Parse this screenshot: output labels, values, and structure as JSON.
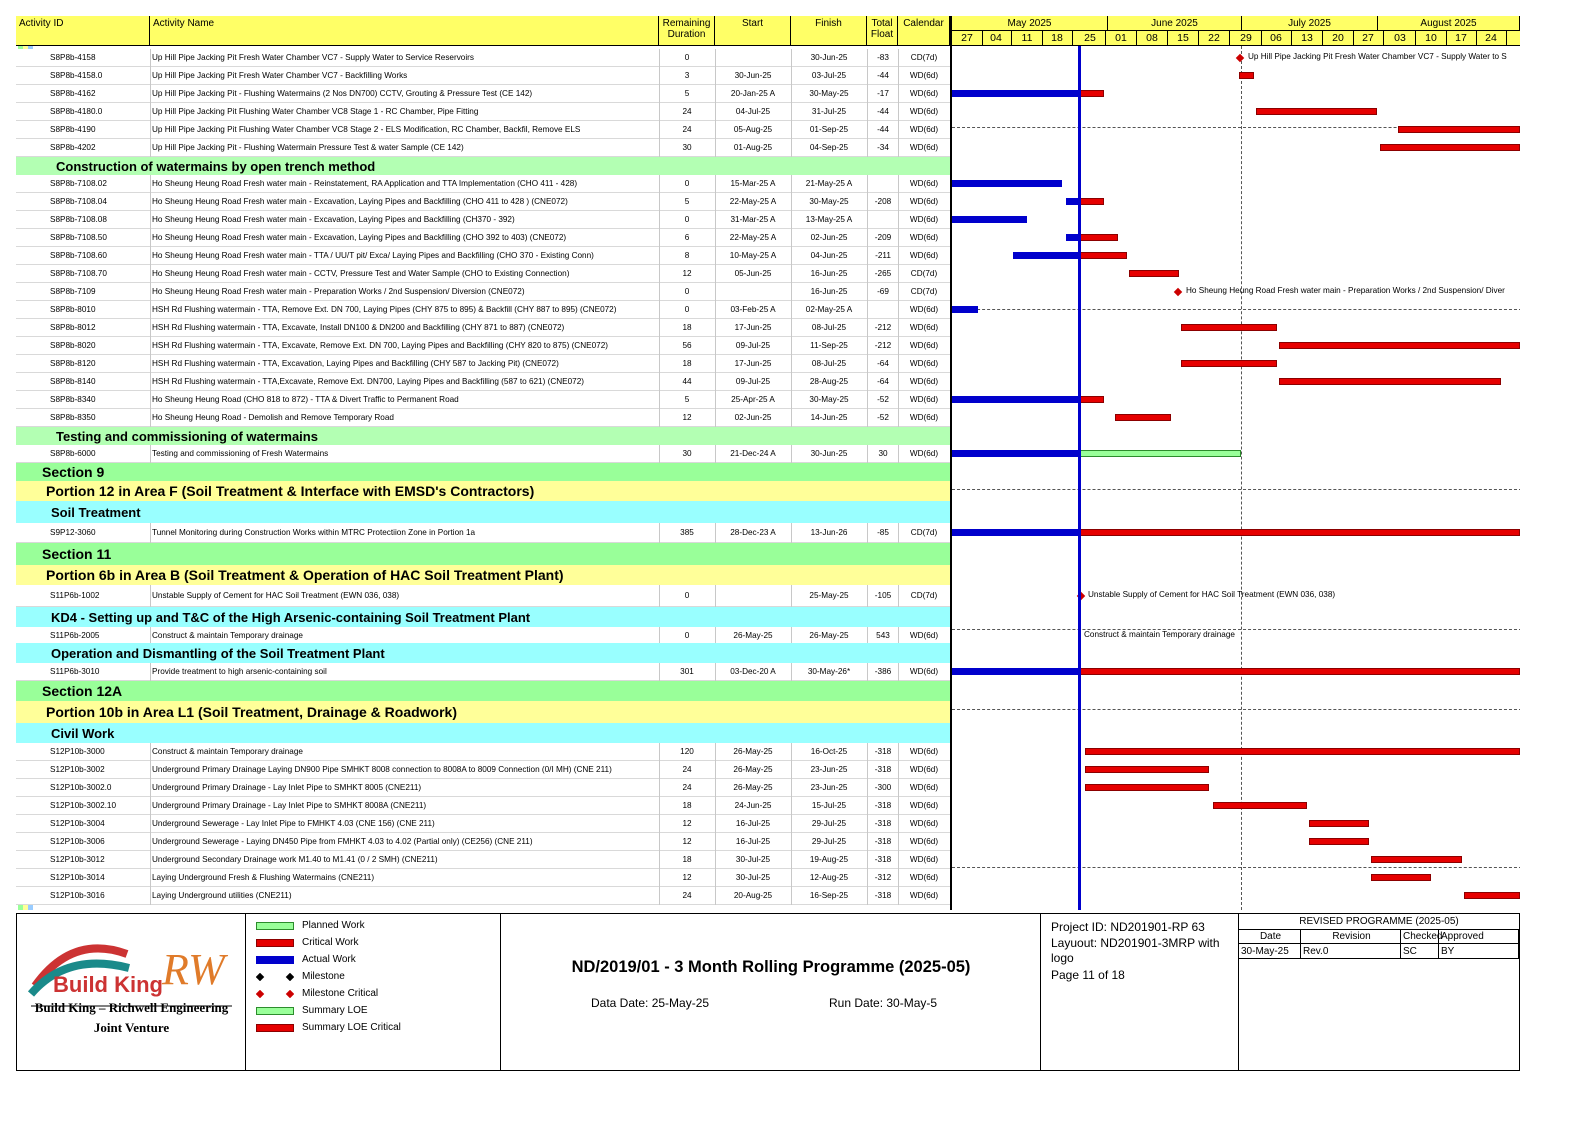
{
  "columns": {
    "id": "Activity ID",
    "name": "Activity Name",
    "rem": "Remaining Duration",
    "start": "Start",
    "finish": "Finish",
    "float": "Total Float",
    "cal": "Calendar"
  },
  "timeline": {
    "months": [
      {
        "label": "May 2025"
      },
      {
        "label": "June 2025"
      },
      {
        "label": "July 2025"
      },
      {
        "label": "August 2025"
      }
    ],
    "weeks": [
      "27",
      "04",
      "11",
      "18",
      "25",
      "01",
      "08",
      "15",
      "22",
      "29",
      "06",
      "13",
      "20",
      "27",
      "03",
      "10",
      "17",
      "24"
    ]
  },
  "rows": [
    {
      "type": "act",
      "id": "S8P8b-4158",
      "name": "Up Hill Pipe Jacking Pit Fresh Water Chamber VC7 - Supply Water to Service Reservoirs",
      "rem": "0",
      "start": "",
      "finish": "30-Jun-25",
      "float": "-83",
      "cal": "CD(7d)"
    },
    {
      "type": "act",
      "id": "S8P8b-4158.0",
      "name": "Up Hill Pipe Jacking Pit Fresh Water Chamber VC7 - Backfilling Works",
      "rem": "3",
      "start": "30-Jun-25",
      "finish": "03-Jul-25",
      "float": "-44",
      "cal": "WD(6d)"
    },
    {
      "type": "act",
      "id": "S8P8b-4162",
      "name": "Up Hill Pipe Jacking Pit - Flushing Watermains (2 Nos DN700) CCTV, Grouting & Pressure Test          (CE 142)",
      "rem": "5",
      "start": "20-Jan-25 A",
      "finish": "30-May-25",
      "float": "-17",
      "cal": "WD(6d)"
    },
    {
      "type": "act",
      "id": "S8P8b-4180.0",
      "name": "Up Hill Pipe Jacking Pit Flushing Water Chamber VC8 Stage 1 - RC Chamber, Pipe Fitting",
      "rem": "24",
      "start": "04-Jul-25",
      "finish": "31-Jul-25",
      "float": "-44",
      "cal": "WD(6d)"
    },
    {
      "type": "act",
      "id": "S8P8b-4190",
      "name": "Up Hill Pipe Jacking Pit Flushing Water Chamber VC8 Stage 2 - ELS Modification, RC Chamber, Backfil, Remove ELS",
      "rem": "24",
      "start": "05-Aug-25",
      "finish": "01-Sep-25",
      "float": "-44",
      "cal": "WD(6d)"
    },
    {
      "type": "act",
      "id": "S8P8b-4202",
      "name": "Up Hill Pipe Jacking Pit - Flushing Watermain Pressure Test & water Sample                        (CE 142)",
      "rem": "30",
      "start": "01-Aug-25",
      "finish": "04-Sep-25",
      "float": "-34",
      "cal": "WD(6d)"
    },
    {
      "type": "hdr",
      "cls": "lvl-lgreen",
      "indent": 40,
      "size": 13,
      "label": "Construction of watermains by open trench method"
    },
    {
      "type": "act",
      "id": "S8P8b-7108.02",
      "name": "Ho Sheung Heung Road Fresh water  main - Reinstatement, RA Application and TTA Implementation  (CHO 411 - 428)",
      "rem": "0",
      "start": "15-Mar-25 A",
      "finish": "21-May-25 A",
      "float": "",
      "cal": "WD(6d)"
    },
    {
      "type": "act",
      "id": "S8P8b-7108.04",
      "name": "Ho Sheung Heung Road Fresh water  main - Excavation, Laying Pipes and Backfilling (CHO 411 to 428 )          (CNE072)",
      "rem": "5",
      "start": "22-May-25 A",
      "finish": "30-May-25",
      "float": "-208",
      "cal": "WD(6d)"
    },
    {
      "type": "act",
      "id": "S8P8b-7108.08",
      "name": "Ho Sheung Heung Road Fresh water  main - Excavation, Laying Pipes and Backfilling (CH370 - 392)",
      "rem": "0",
      "start": "31-Mar-25 A",
      "finish": "13-May-25 A",
      "float": "",
      "cal": "WD(6d)"
    },
    {
      "type": "act",
      "id": "S8P8b-7108.50",
      "name": "Ho Sheung Heung Road Fresh water  main - Excavation, Laying Pipes and Backfilling (CHO 392 to 403)          (CNE072)",
      "rem": "6",
      "start": "22-May-25 A",
      "finish": "02-Jun-25",
      "float": "-209",
      "cal": "WD(6d)"
    },
    {
      "type": "act",
      "id": "S8P8b-7108.60",
      "name": "Ho Sheung Heung Road Fresh water  main - TTA / UU/T pit/ Exca/ Laying Pipes and Backfilling  (CHO 370 - Existing Conn)",
      "rem": "8",
      "start": "10-May-25 A",
      "finish": "04-Jun-25",
      "float": "-211",
      "cal": "WD(6d)"
    },
    {
      "type": "act",
      "id": "S8P8b-7108.70",
      "name": "Ho Sheung Heung Road Fresh water  main - CCTV, Pressure Test and Water Sample  (CHO to Existing Connection)",
      "rem": "12",
      "start": "05-Jun-25",
      "finish": "16-Jun-25",
      "float": "-265",
      "cal": "CD(7d)"
    },
    {
      "type": "act",
      "id": "S8P8b-7109",
      "name": "Ho Sheung Heung Road Fresh water  main - Preparation Works / 2nd Suspension/ Diversion                (CNE072)",
      "rem": "0",
      "start": "",
      "finish": "16-Jun-25",
      "float": "-69",
      "cal": "CD(7d)"
    },
    {
      "type": "act",
      "id": "S8P8b-8010",
      "name": "HSH Rd Flushing watermain - TTA, Remove Ext. DN 700, Laying Pipes (CHY 875 to 895) & Backfill (CHY 887 to 895) (CNE072)",
      "rem": "0",
      "start": "03-Feb-25 A",
      "finish": "02-May-25 A",
      "float": "",
      "cal": "WD(6d)"
    },
    {
      "type": "act",
      "id": "S8P8b-8012",
      "name": "HSH Rd Flushing watermain - TTA, Excavate, Install DN100 & DN200 and Backfilling (CHY 871 to 887)  (CNE072)",
      "rem": "18",
      "start": "17-Jun-25",
      "finish": "08-Jul-25",
      "float": "-212",
      "cal": "WD(6d)"
    },
    {
      "type": "act",
      "id": "S8P8b-8020",
      "name": "HSH Rd Flushing watermain - TTA, Excavate, Remove Ext. DN 700, Laying Pipes and Backfilling (CHY 820 to 875)  (CNE072)",
      "rem": "56",
      "start": "09-Jul-25",
      "finish": "11-Sep-25",
      "float": "-212",
      "cal": "WD(6d)"
    },
    {
      "type": "act",
      "id": "S8P8b-8120",
      "name": "HSH Rd Flushing watermain - TTA, Excavation, Laying Pipes and Backfilling (CHY 587 to Jacking Pit)   (CNE072)",
      "rem": "18",
      "start": "17-Jun-25",
      "finish": "08-Jul-25",
      "float": "-64",
      "cal": "WD(6d)"
    },
    {
      "type": "act",
      "id": "S8P8b-8140",
      "name": "HSH Rd Flushing watermain - TTA,Excavate, Remove Ext. DN700, Laying Pipes and Backfilling (587 to 621)  (CNE072)",
      "rem": "44",
      "start": "09-Jul-25",
      "finish": "28-Aug-25",
      "float": "-64",
      "cal": "WD(6d)"
    },
    {
      "type": "act",
      "id": "S8P8b-8340",
      "name": "Ho Sheung Heung Road  (CHO 818 to 872) - TTA & Divert Traffic to Permanent Road",
      "rem": "5",
      "start": "25-Apr-25 A",
      "finish": "30-May-25",
      "float": "-52",
      "cal": "WD(6d)"
    },
    {
      "type": "act",
      "id": "S8P8b-8350",
      "name": "Ho Sheung Heung Road - Demolish and Remove Temporary Road",
      "rem": "12",
      "start": "02-Jun-25",
      "finish": "14-Jun-25",
      "float": "-52",
      "cal": "WD(6d)"
    },
    {
      "type": "hdr",
      "cls": "lvl-lgreen",
      "indent": 40,
      "size": 13,
      "label": "Testing and commissioning of watermains"
    },
    {
      "type": "act",
      "id": "S8P8b-6000",
      "name": "Testing and commissioning of Fresh Watermains",
      "rem": "30",
      "start": "21-Dec-24 A",
      "finish": "30-Jun-25",
      "float": "30",
      "cal": "WD(6d)"
    },
    {
      "type": "hdr",
      "cls": "lvl-green",
      "indent": 26,
      "size": 14,
      "label": "Section 9"
    },
    {
      "type": "hdr",
      "cls": "lvl-yellow",
      "indent": 30,
      "size": 14,
      "label": "Portion 12 in Area F   (Soil Treatment & Interface with EMSD's Contractors)"
    },
    {
      "type": "hdr",
      "cls": "lvl-cyan",
      "indent": 35,
      "size": 13,
      "label": "Soil Treatment"
    },
    {
      "type": "act",
      "id": "S9P12-3060",
      "name": "Tunnel Monitoring during Construction Works within MTRC Protectiion Zone in Portion 1a",
      "rem": "385",
      "start": "28-Dec-23 A",
      "finish": "13-Jun-26",
      "float": "-85",
      "cal": "CD(7d)"
    },
    {
      "type": "hdr",
      "cls": "lvl-green",
      "indent": 26,
      "size": 14,
      "label": "Section 11"
    },
    {
      "type": "hdr",
      "cls": "lvl-yellow",
      "indent": 30,
      "size": 14,
      "label": "Portion 6b in Area B   (Soil Treatment & Operation of HAC Soil Treatment Plant)"
    },
    {
      "type": "act",
      "id": "S11P6b-1002",
      "name": "Unstable Supply of Cement for HAC Soil Treatment (EWN 036, 038)",
      "rem": "0",
      "start": "",
      "finish": "25-May-25",
      "float": "-105",
      "cal": "CD(7d)"
    },
    {
      "type": "hdr",
      "cls": "lvl-cyan",
      "indent": 35,
      "size": 13,
      "label": "KD4 - Setting up and T&C of the High Arsenic-containing Soil Treatment Plant"
    },
    {
      "type": "act",
      "id": "S11P6b-2005",
      "name": "Construct & maintain Temporary drainage",
      "rem": "0",
      "start": "26-May-25",
      "finish": "26-May-25",
      "float": "543",
      "cal": "WD(6d)"
    },
    {
      "type": "hdr",
      "cls": "lvl-cyan",
      "indent": 35,
      "size": 13,
      "label": "Operation and Dismantling of the Soil Treatment Plant"
    },
    {
      "type": "act",
      "id": "S11P6b-3010",
      "name": "Provide treatment to high arsenic-containing soil",
      "rem": "301",
      "start": "03-Dec-20 A",
      "finish": "30-May-26*",
      "float": "-386",
      "cal": "WD(6d)"
    },
    {
      "type": "hdr",
      "cls": "lvl-green",
      "indent": 26,
      "size": 14,
      "label": "Section 12A"
    },
    {
      "type": "hdr",
      "cls": "lvl-yellow",
      "indent": 30,
      "size": 14,
      "label": "Portion 10b in Area L1   (Soil Treatment, Drainage & Roadwork)"
    },
    {
      "type": "hdr",
      "cls": "lvl-cyan",
      "indent": 35,
      "size": 13,
      "label": "Civil Work"
    },
    {
      "type": "act",
      "id": "S12P10b-3000",
      "name": "Construct & maintain Temporary drainage",
      "rem": "120",
      "start": "26-May-25",
      "finish": "16-Oct-25",
      "float": "-318",
      "cal": "WD(6d)"
    },
    {
      "type": "act",
      "id": "S12P10b-3002",
      "name": "Underground Primary Drainage Laying DN900 Pipe SMHKT 8008 connection to 8008A to 8009 Connection (0/I MH)    (CNE 211)",
      "rem": "24",
      "start": "26-May-25",
      "finish": "23-Jun-25",
      "float": "-318",
      "cal": "WD(6d)"
    },
    {
      "type": "act",
      "id": "S12P10b-3002.0",
      "name": "Underground Primary Drainage - Lay Inlet Pipe to SMHKT 8005                                                    (CNE211)",
      "rem": "24",
      "start": "26-May-25",
      "finish": "23-Jun-25",
      "float": "-300",
      "cal": "WD(6d)"
    },
    {
      "type": "act",
      "id": "S12P10b-3002.10",
      "name": "Underground Primary Drainage - Lay Inlet Pipe to SMHKT 8008A                                                  (CNE211)",
      "rem": "18",
      "start": "24-Jun-25",
      "finish": "15-Jul-25",
      "float": "-318",
      "cal": "WD(6d)"
    },
    {
      "type": "act",
      "id": "S12P10b-3004",
      "name": "Underground Sewerage - Lay Inlet Pipe to FMHKT 4.03                           (CNE 156)      (CNE 211)",
      "rem": "12",
      "start": "16-Jul-25",
      "finish": "29-Jul-25",
      "float": "-318",
      "cal": "WD(6d)"
    },
    {
      "type": "act",
      "id": "S12P10b-3006",
      "name": "Underground Sewerage - Laying DN450 Pipe from FMHKT 4.03 to 4.02 (Partial only)      (CE256)     (CNE 211)",
      "rem": "12",
      "start": "16-Jul-25",
      "finish": "29-Jul-25",
      "float": "-318",
      "cal": "WD(6d)"
    },
    {
      "type": "act",
      "id": "S12P10b-3012",
      "name": "Underground Secondary Drainage work M1.40 to M1.41  (0 / 2  SMH)                  (CNE211)",
      "rem": "18",
      "start": "30-Jul-25",
      "finish": "19-Aug-25",
      "float": "-318",
      "cal": "WD(6d)"
    },
    {
      "type": "act",
      "id": "S12P10b-3014",
      "name": "Laying Underground Fresh & Flushing Watermains                                         (CNE211)",
      "rem": "12",
      "start": "30-Jul-25",
      "finish": "12-Aug-25",
      "float": "-312",
      "cal": "WD(6d)"
    },
    {
      "type": "act",
      "id": "S12P10b-3016",
      "name": "Laying Underground utilities                                                           (CNE211)",
      "rem": "24",
      "start": "20-Aug-25",
      "finish": "16-Sep-25",
      "float": "-318",
      "cal": "WD(6d)"
    }
  ],
  "gantt_labels": {
    "r0": "Up Hill Pipe Jacking Pit Fresh Water Chamber VC7 - Supply Water to S",
    "r13": "Ho Sheung Heung Road Fresh water  main - Preparation Works / 2nd Suspension/ Diver",
    "r29": "Unstable Supply of Cement for HAC Soil Treatment (EWN 036, 038)",
    "r31": "Construct & maintain Temporary drainage"
  },
  "legend": [
    {
      "label": "Planned Work",
      "kind": "green"
    },
    {
      "label": "Critical Work",
      "kind": "red"
    },
    {
      "label": "Actual Work",
      "kind": "blue"
    },
    {
      "label": "Milestone",
      "kind": "ms-black"
    },
    {
      "label": "Milestone Critical",
      "kind": "ms-red"
    },
    {
      "label": "Summary LOE",
      "kind": "green"
    },
    {
      "label": "Summary LOE Critical",
      "kind": "red"
    }
  ],
  "logo": {
    "brand1": "Build King",
    "brand2": "RW",
    "line1": "Build King – Richwell Engineering",
    "line2": "Joint Venture"
  },
  "footer": {
    "title": "ND/2019/01 - 3 Month Rolling Programme (2025-05)",
    "data_date": "Data Date: 25-May-25",
    "run_date": "Run Date: 30-May-5",
    "project_id": "Project ID: ND201901-RP 63",
    "layout": "Layuout: ND201901-3MRP with logo",
    "page": "Page 11 of 18",
    "rev_title": "REVISED PROGRAMME (2025-05)",
    "rev_headers": [
      "Date",
      "Revision",
      "Checked",
      "Approved"
    ],
    "rev_values": [
      "30-May-25",
      "Rev.0",
      "SC",
      "BY"
    ]
  },
  "colors": {
    "header": "#ffff66",
    "critical": "#e60000",
    "actual": "#0000cc",
    "planned": "#99ff99",
    "datadate": "#0000cc"
  }
}
